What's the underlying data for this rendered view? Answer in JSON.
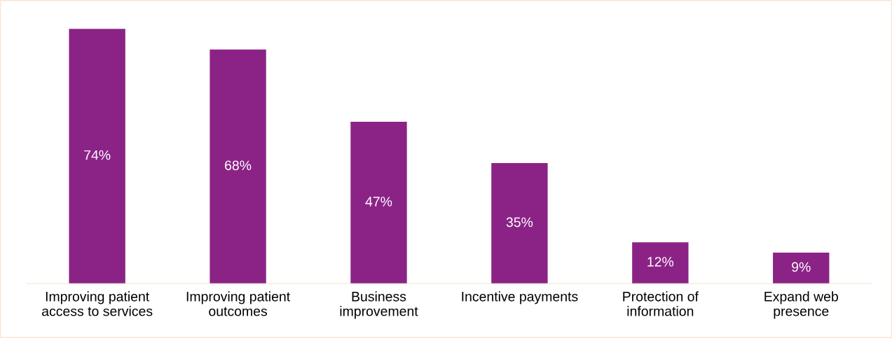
{
  "chart_data": {
    "type": "bar",
    "categories": [
      "Improving patient\naccess to services",
      "Improving patient\noutcomes",
      "Business\nimprovement",
      "Incentive payments",
      "Protection of\ninformation",
      "Expand web\npresence"
    ],
    "values": [
      74,
      68,
      47,
      35,
      12,
      9
    ],
    "value_labels": [
      "74%",
      "68%",
      "47%",
      "35%",
      "12%",
      "9%"
    ],
    "color": "#8b2387",
    "grid": false,
    "legend": false
  }
}
